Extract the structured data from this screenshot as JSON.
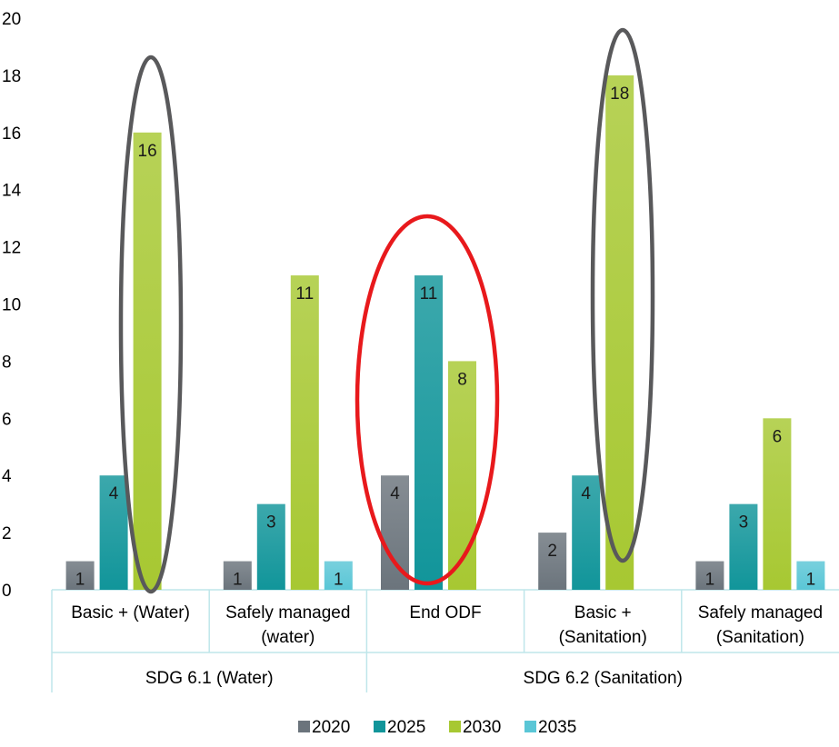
{
  "chart_data": {
    "type": "bar",
    "groups": [
      {
        "label": "SDG 6.1 (Water)",
        "category_count": 2
      },
      {
        "label": "SDG 6.2 (Sanitation)",
        "category_count": 3
      }
    ],
    "categories": [
      [
        "Basic + (Water)"
      ],
      [
        "Safely managed",
        "(water)"
      ],
      [
        "End ODF"
      ],
      [
        "Basic +",
        "(Sanitation)"
      ],
      [
        "Safely managed",
        "(Sanitation)"
      ]
    ],
    "series": [
      {
        "name": "2020",
        "color": "#6b747c",
        "values": [
          1,
          1,
          4,
          2,
          1
        ]
      },
      {
        "name": "2025",
        "color": "#11959a",
        "values": [
          4,
          3,
          11,
          4,
          3
        ]
      },
      {
        "name": "2030",
        "color": "#a7c832",
        "values": [
          16,
          11,
          8,
          18,
          6
        ]
      },
      {
        "name": "2035",
        "color": "#5ac6d6",
        "values": [
          null,
          1,
          null,
          null,
          1
        ]
      }
    ],
    "yticks": [
      "0",
      "2",
      "4",
      "6",
      "8",
      "10",
      "12",
      "14",
      "16",
      "18",
      "20"
    ],
    "ylim": [
      0,
      20
    ],
    "title": "",
    "xlabel": "",
    "ylabel": "",
    "grid": false,
    "legend_position": "bottom",
    "annotations": [
      {
        "shape": "ellipse",
        "color": "#59595b",
        "around": "Basic + (Water) 2030"
      },
      {
        "shape": "ellipse",
        "color": "#e8191c",
        "around": "End ODF"
      },
      {
        "shape": "ellipse",
        "color": "#59595b",
        "around": "Basic + (Sanitation) 2030"
      }
    ]
  }
}
